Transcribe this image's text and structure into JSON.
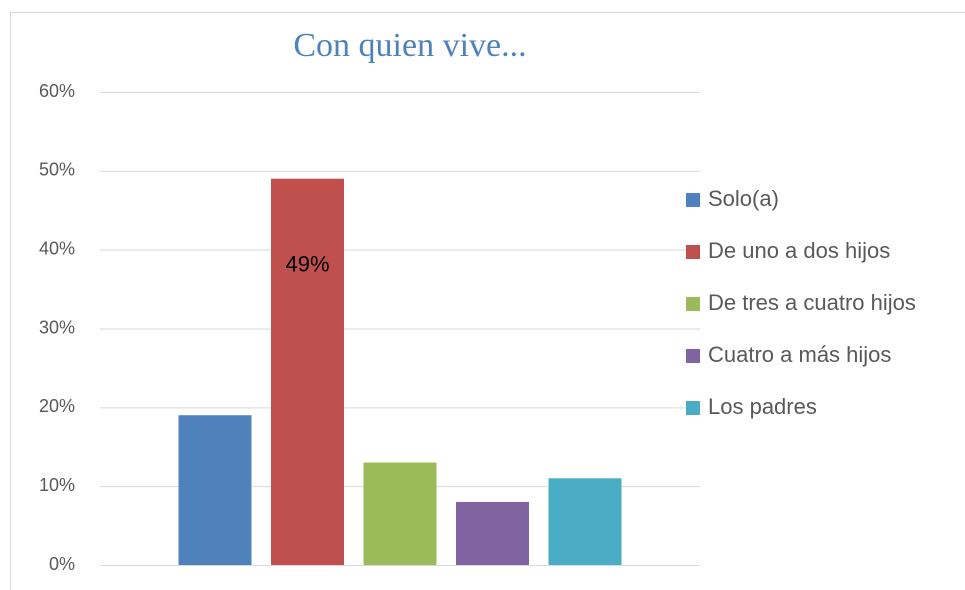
{
  "chart_data": {
    "type": "bar",
    "title": "Con quien vive...",
    "categories": [
      null
    ],
    "series": [
      {
        "name": "Solo(a)",
        "color": "#4f81bd",
        "values": [
          19
        ]
      },
      {
        "name": "De uno a dos hijos",
        "color": "#c0504d",
        "values": [
          49
        ],
        "value_labels": [
          "49%"
        ]
      },
      {
        "name": "De tres a cuatro hijos",
        "color": "#9bbb59",
        "values": [
          13
        ]
      },
      {
        "name": "Cuatro a más hijos",
        "color": "#8064a2",
        "values": [
          8
        ]
      },
      {
        "name": "Los padres",
        "color": "#4bacc6",
        "values": [
          11
        ]
      }
    ],
    "ylim": [
      0,
      60
    ],
    "yticks": [
      {
        "value": 0,
        "label": "0%"
      },
      {
        "value": 10,
        "label": "10%"
      },
      {
        "value": 20,
        "label": "20%"
      },
      {
        "value": 30,
        "label": "30%"
      },
      {
        "value": 40,
        "label": "40%"
      },
      {
        "value": 50,
        "label": "50%"
      },
      {
        "value": 60,
        "label": "60%"
      }
    ],
    "grid": true,
    "legend": "right"
  }
}
